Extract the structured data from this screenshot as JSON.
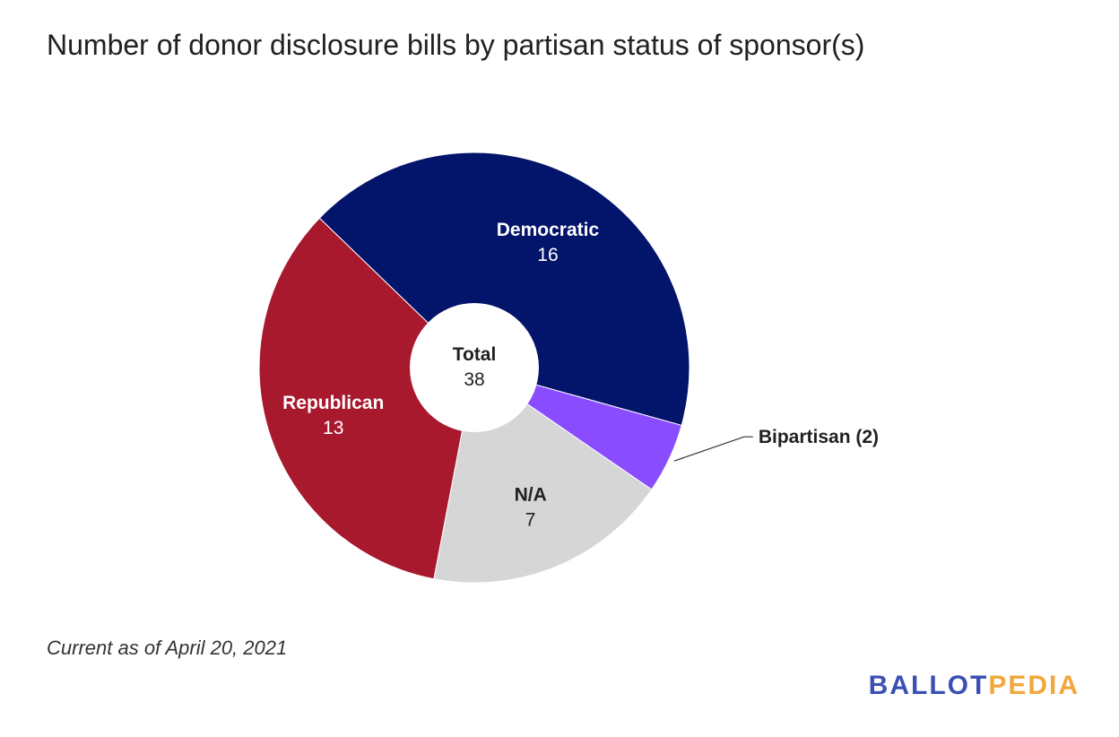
{
  "chart_data": {
    "type": "pie",
    "title": "Number of donor disclosure bills by partisan status of sponsor(s)",
    "donut": true,
    "center_label": "Total",
    "center_value": "38",
    "slices": [
      {
        "label": "Democratic",
        "value": 16,
        "color": "#03146b",
        "text_color": "#ffffff"
      },
      {
        "label": "Bipartisan",
        "value": 2,
        "color": "#8a4cff",
        "callout": "Bipartisan (2)"
      },
      {
        "label": "N/A",
        "value": 7,
        "color": "#d6d6d6",
        "text_color": "#212121"
      },
      {
        "label": "Republican",
        "value": 13,
        "color": "#a8192e",
        "text_color": "#ffffff"
      }
    ],
    "legend": "none"
  },
  "footnote": "Current as of April 20, 2021",
  "brand": {
    "part1": "BALLOT",
    "part2": "PEDIA",
    "color1": "#3a4fb4",
    "color2": "#f1a73b"
  }
}
